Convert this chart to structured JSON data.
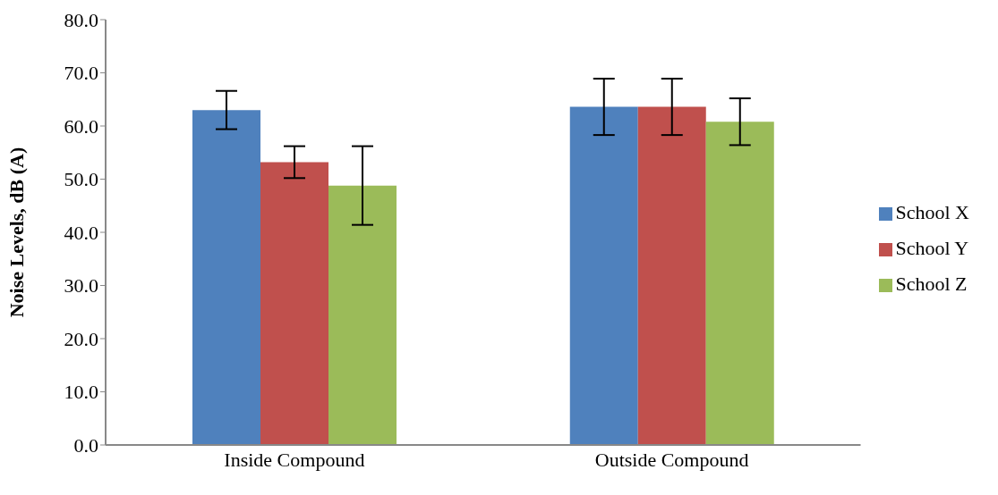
{
  "chart_data": {
    "type": "bar",
    "ylabel": "Noise Levels, dB (A)",
    "categories": [
      "Inside Compound",
      "Outside Compound"
    ],
    "series": [
      {
        "name": "School X",
        "color": "#4f81bd",
        "values": [
          63.0,
          63.6
        ],
        "errors": [
          3.6,
          5.3
        ]
      },
      {
        "name": "School Y",
        "color": "#c0504d",
        "values": [
          53.2,
          63.6
        ],
        "errors": [
          3.0,
          5.3
        ]
      },
      {
        "name": "School Z",
        "color": "#9bbb59",
        "values": [
          48.8,
          60.8
        ],
        "errors": [
          7.4,
          4.4
        ]
      }
    ],
    "ylim": [
      0,
      80
    ],
    "yticks": [
      {
        "value": 0,
        "label": "0.0"
      },
      {
        "value": 10,
        "label": "10.0"
      },
      {
        "value": 20,
        "label": "20.0"
      },
      {
        "value": 30,
        "label": "30.0"
      },
      {
        "value": 40,
        "label": "40.0"
      },
      {
        "value": 50,
        "label": "50.0"
      },
      {
        "value": 60,
        "label": "60.0"
      },
      {
        "value": 70,
        "label": "70.0"
      },
      {
        "value": 80,
        "label": "80.0"
      }
    ],
    "grid": false,
    "legend": "right"
  }
}
